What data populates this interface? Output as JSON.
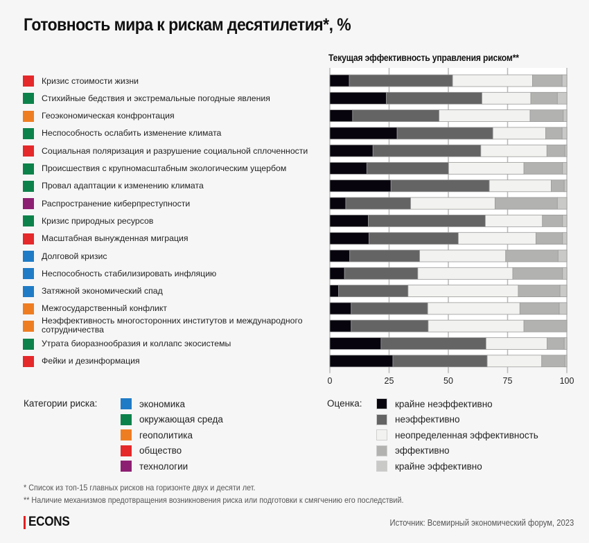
{
  "header": {
    "title": "Готовность мира к рискам десятилетия*, %",
    "chart_subtitle": "Текущая эффективность управления риском**"
  },
  "colors": {
    "category": {
      "economy": "#1f7bc6",
      "environment": "#0c824a",
      "geopolitics": "#ee7d22",
      "society": "#e5282a",
      "technology": "#8d1f72"
    },
    "rating": [
      "#07040d",
      "#646464",
      "#f2f2f0",
      "#b2b2b0",
      "#c9c9c7"
    ]
  },
  "chart_data": {
    "type": "bar",
    "stacked": true,
    "orientation": "horizontal",
    "title": "Готовность мира к рискам десятилетия*, %",
    "subtitle": "Текущая эффективность управления риском**",
    "xlim": [
      0,
      100
    ],
    "xticks": [
      0,
      25,
      50,
      75,
      100
    ],
    "grid": true,
    "categories": [
      "Кризис стоимости жизни",
      "Стихийные бедствия и экстремальные погодные явления",
      "Геоэкономическая конфронтация",
      "Неспособность ослабить изменение климата",
      "Социальная поляризация и разрушение социальной сплоченности",
      "Происшествия с крупномасштабным экологическим ущербом",
      "Провал адаптации к изменению климата",
      "Распространение киберпреступности",
      "Кризис природных ресурсов",
      "Масштабная вынужденная миграция",
      "Долговой кризис",
      "Неспособность стабилизировать инфляцию",
      "Затяжной экономический спад",
      "Межгосударственный конфликт",
      "Неэффективность многосторонних институтов и международного сотрудничества",
      "Утрата биоразнообразия и коллапс экосистемы",
      "Фейки и дезинформация"
    ],
    "risk_category": [
      "society",
      "environment",
      "geopolitics",
      "environment",
      "society",
      "environment",
      "environment",
      "technology",
      "environment",
      "society",
      "economy",
      "economy",
      "economy",
      "geopolitics",
      "geopolitics",
      "environment",
      "society"
    ],
    "series": [
      {
        "name": "крайне неэффективно",
        "values": [
          8.2,
          23.8,
          9.6,
          28.4,
          18.2,
          15.6,
          25.8,
          6.7,
          16.2,
          16.5,
          8.4,
          6.2,
          3.7,
          9.0,
          9.0,
          21.6,
          26.6
        ]
      },
      {
        "name": "неэффективно",
        "values": [
          43.6,
          40.4,
          36.5,
          40.4,
          45.5,
          34.5,
          41.5,
          27.4,
          49.4,
          37.7,
          29.5,
          30.9,
          29.3,
          32.3,
          32.5,
          44.3,
          39.8
        ]
      },
      {
        "name": "неопределенная эффективность",
        "values": [
          33.7,
          20.6,
          38.4,
          22.3,
          27.9,
          31.8,
          26.1,
          35.6,
          24.1,
          32.8,
          36.3,
          40.1,
          46.5,
          38.9,
          40.4,
          25.8,
          23.0
        ]
      },
      {
        "name": "эффективно",
        "values": [
          12.5,
          11.2,
          14.0,
          6.9,
          7.6,
          16.3,
          5.5,
          26.3,
          8.5,
          11.2,
          22.1,
          21.0,
          17.6,
          16.6,
          18.1,
          7.2,
          9.8
        ]
      },
      {
        "name": "крайне эффективно",
        "values": [
          2.0,
          4.0,
          1.5,
          2.0,
          0.8,
          1.8,
          1.1,
          4.0,
          1.8,
          1.8,
          3.7,
          1.8,
          2.9,
          3.2,
          0.0,
          1.1,
          0.8
        ]
      }
    ]
  },
  "legend_categories": {
    "title": "Категории риска:",
    "items": [
      {
        "key": "economy",
        "label": "экономика"
      },
      {
        "key": "environment",
        "label": "окружающая среда"
      },
      {
        "key": "geopolitics",
        "label": "геополитика"
      },
      {
        "key": "society",
        "label": "общество"
      },
      {
        "key": "technology",
        "label": "технологии"
      }
    ]
  },
  "legend_rating": {
    "title": "Оценка:",
    "items": [
      {
        "label": "крайне неэффективно"
      },
      {
        "label": "неэффективно"
      },
      {
        "label": "неопределенная эффективность"
      },
      {
        "label": "эффективно"
      },
      {
        "label": "крайне эффективно"
      }
    ]
  },
  "footnotes": [
    "* Список из топ-15 главных рисков на горизонте двух и десяти лет.",
    "** Наличие механизмов предотвращения возникновения риска или подготовки к смягчению его последствий."
  ],
  "footer": {
    "logo": "ECONS",
    "source": "Источник: Всемирный экономический форум, 2023"
  }
}
